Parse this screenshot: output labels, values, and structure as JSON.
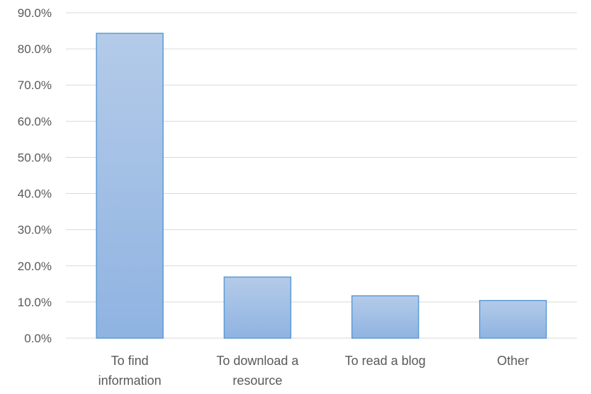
{
  "chart_data": {
    "type": "bar",
    "categories": [
      [
        "To find",
        "information"
      ],
      [
        "To download a",
        "resource"
      ],
      [
        "To read a blog"
      ],
      [
        "Other"
      ]
    ],
    "values": [
      84.3,
      16.9,
      11.7,
      10.4
    ],
    "ylim": [
      0,
      90
    ],
    "ytick_step": 10,
    "ytick_labels": [
      "0.0%",
      "10.0%",
      "20.0%",
      "30.0%",
      "40.0%",
      "50.0%",
      "60.0%",
      "70.0%",
      "80.0%",
      "90.0%"
    ],
    "grid": true,
    "colors": {
      "bar_top": "#b4cbe9",
      "bar_bottom": "#8fb3e1",
      "bar_border": "#5b9bd5",
      "grid": "#d9d9d9"
    }
  }
}
